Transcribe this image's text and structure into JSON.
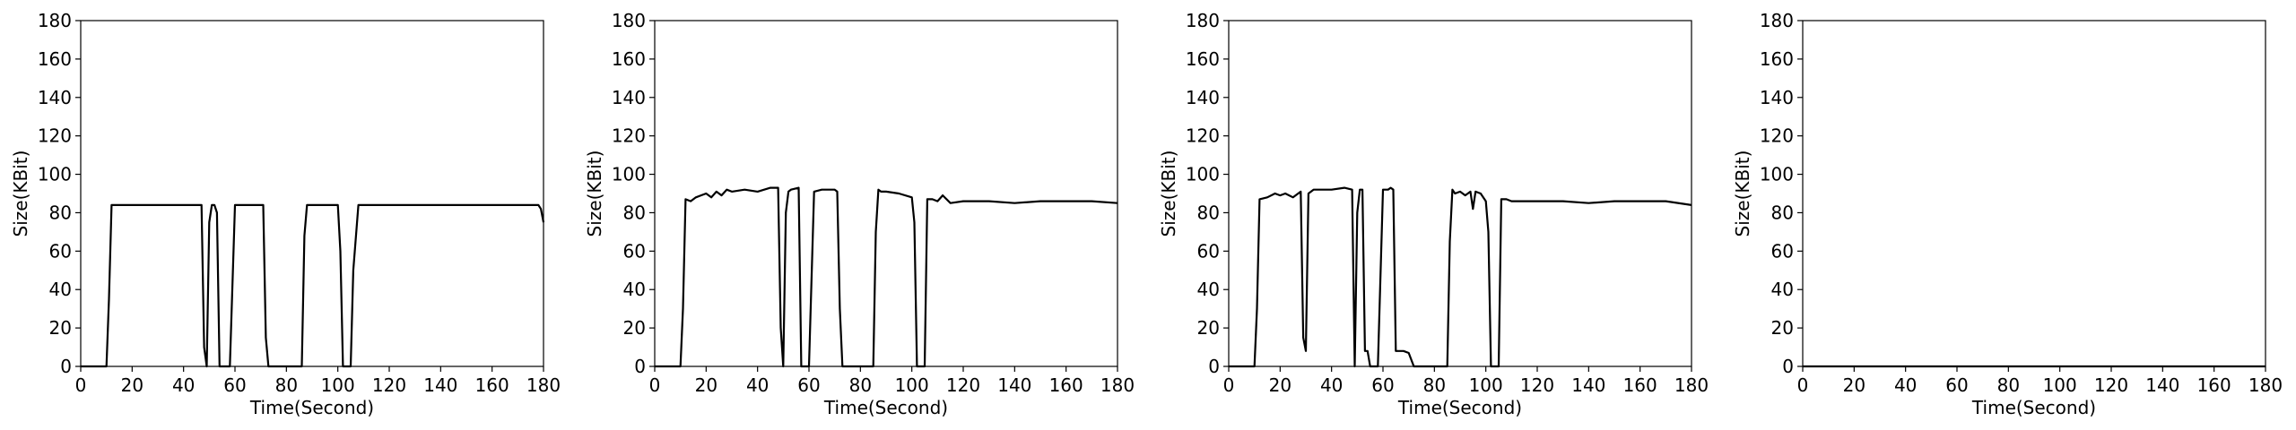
{
  "chart_data": [
    {
      "type": "line",
      "title": "",
      "xlabel": "Time(Second)",
      "ylabel": "Size(KBit)",
      "xlim": [
        0,
        180
      ],
      "ylim": [
        0,
        180
      ],
      "xticks": [
        0,
        20,
        40,
        60,
        80,
        100,
        120,
        140,
        160,
        180
      ],
      "yticks": [
        0,
        20,
        40,
        60,
        80,
        100,
        120,
        140,
        160,
        180
      ],
      "grid": false,
      "legend": "none",
      "line_color": "#000000",
      "series": [
        {
          "x": [
            0,
            8,
            10,
            11,
            12,
            15,
            20,
            30,
            40,
            47,
            48,
            49,
            50,
            51,
            52,
            53,
            54,
            55,
            56,
            58,
            60,
            62,
            65,
            70,
            71,
            72,
            73,
            75,
            80,
            85,
            86,
            87,
            88,
            90,
            95,
            100,
            101,
            102,
            103,
            105,
            106,
            108,
            110,
            120,
            130,
            140,
            150,
            160,
            170,
            178,
            179,
            180
          ],
          "y": [
            0,
            0,
            0,
            35,
            84,
            84,
            84,
            84,
            84,
            84,
            10,
            0,
            75,
            84,
            84,
            80,
            0,
            0,
            0,
            0,
            84,
            84,
            84,
            84,
            84,
            15,
            0,
            0,
            0,
            0,
            0,
            68,
            84,
            84,
            84,
            84,
            60,
            0,
            0,
            0,
            50,
            84,
            84,
            84,
            84,
            84,
            84,
            84,
            84,
            84,
            82,
            75
          ]
        }
      ]
    },
    {
      "type": "line",
      "title": "",
      "xlabel": "Time(Second)",
      "ylabel": "Size(KBit)",
      "xlim": [
        0,
        180
      ],
      "ylim": [
        0,
        180
      ],
      "xticks": [
        0,
        20,
        40,
        60,
        80,
        100,
        120,
        140,
        160,
        180
      ],
      "yticks": [
        0,
        20,
        40,
        60,
        80,
        100,
        120,
        140,
        160,
        180
      ],
      "grid": false,
      "legend": "none",
      "line_color": "#000000",
      "series": [
        {
          "x": [
            0,
            5,
            10,
            11,
            12,
            14,
            16,
            18,
            20,
            22,
            24,
            26,
            28,
            30,
            35,
            40,
            45,
            48,
            49,
            50,
            51,
            52,
            53,
            56,
            57,
            58,
            60,
            62,
            65,
            70,
            71,
            72,
            73,
            75,
            80,
            85,
            86,
            87,
            88,
            90,
            95,
            100,
            101,
            102,
            103,
            104,
            105,
            106,
            108,
            110,
            112,
            115,
            120,
            130,
            140,
            150,
            160,
            170,
            180
          ],
          "y": [
            0,
            0,
            0,
            30,
            87,
            86,
            88,
            89,
            90,
            88,
            91,
            89,
            92,
            91,
            92,
            91,
            93,
            93,
            20,
            0,
            80,
            91,
            92,
            93,
            0,
            0,
            0,
            91,
            92,
            92,
            91,
            30,
            0,
            0,
            0,
            0,
            70,
            92,
            91,
            91,
            90,
            88,
            75,
            0,
            0,
            0,
            0,
            87,
            87,
            86,
            89,
            85,
            86,
            86,
            85,
            86,
            86,
            86,
            85
          ]
        }
      ]
    },
    {
      "type": "line",
      "title": "",
      "xlabel": "Time(Second)",
      "ylabel": "Size(KBit)",
      "xlim": [
        0,
        180
      ],
      "ylim": [
        0,
        180
      ],
      "xticks": [
        0,
        20,
        40,
        60,
        80,
        100,
        120,
        140,
        160,
        180
      ],
      "yticks": [
        0,
        20,
        40,
        60,
        80,
        100,
        120,
        140,
        160,
        180
      ],
      "grid": false,
      "legend": "none",
      "line_color": "#000000",
      "series": [
        {
          "x": [
            0,
            5,
            10,
            11,
            12,
            15,
            18,
            20,
            22,
            25,
            28,
            29,
            30,
            31,
            33,
            35,
            40,
            45,
            48,
            49,
            50,
            51,
            52,
            53,
            54,
            55,
            56,
            58,
            60,
            62,
            63,
            64,
            65,
            66,
            67,
            68,
            70,
            72,
            75,
            80,
            85,
            86,
            87,
            88,
            90,
            92,
            94,
            95,
            96,
            98,
            100,
            101,
            102,
            103,
            105,
            106,
            108,
            110,
            120,
            130,
            140,
            150,
            160,
            170,
            180
          ],
          "y": [
            0,
            0,
            0,
            30,
            87,
            88,
            90,
            89,
            90,
            88,
            91,
            15,
            8,
            90,
            92,
            92,
            92,
            93,
            92,
            0,
            80,
            92,
            92,
            8,
            8,
            0,
            0,
            0,
            92,
            92,
            93,
            92,
            8,
            8,
            8,
            8,
            7,
            0,
            0,
            0,
            0,
            65,
            92,
            90,
            91,
            89,
            91,
            82,
            91,
            90,
            86,
            70,
            0,
            0,
            0,
            87,
            87,
            86,
            86,
            86,
            85,
            86,
            86,
            86,
            84
          ]
        }
      ]
    },
    {
      "type": "line",
      "title": "",
      "xlabel": "Time(Second)",
      "ylabel": "Size(KBit)",
      "xlim": [
        0,
        180
      ],
      "ylim": [
        0,
        180
      ],
      "xticks": [
        0,
        20,
        40,
        60,
        80,
        100,
        120,
        140,
        160,
        180
      ],
      "yticks": [
        0,
        20,
        40,
        60,
        80,
        100,
        120,
        140,
        160,
        180
      ],
      "grid": false,
      "legend": "none",
      "line_color": "#000000",
      "series": [
        {
          "x": [
            0,
            180
          ],
          "y": [
            0,
            0
          ]
        }
      ]
    }
  ]
}
